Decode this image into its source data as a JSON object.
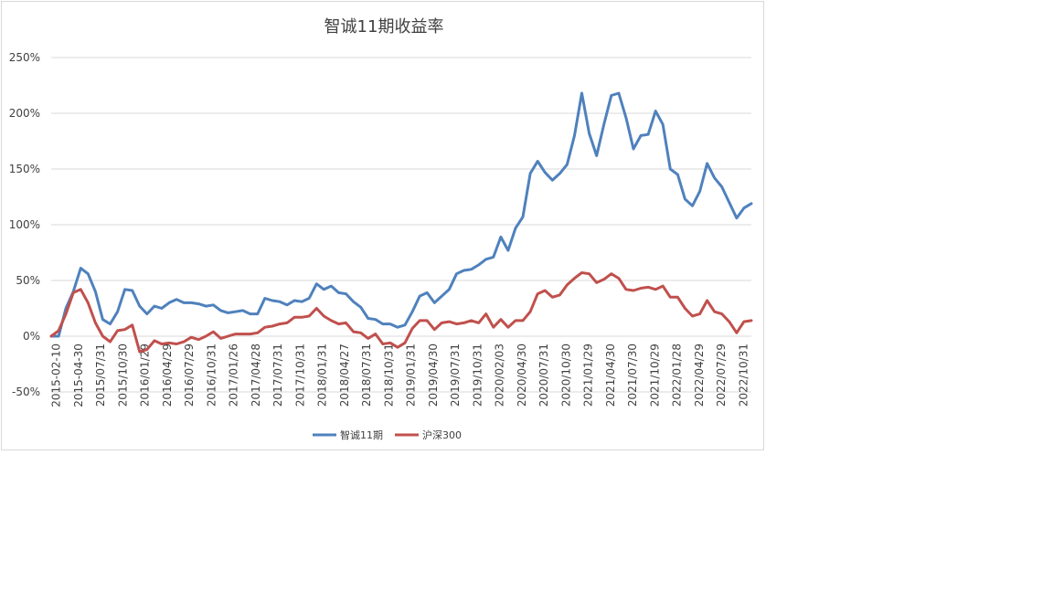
{
  "chart_data": {
    "type": "line",
    "title": "智诚11期收益率",
    "xlabel": "",
    "ylabel": "",
    "ylim": [
      -50,
      250
    ],
    "yticks": [
      -50,
      0,
      50,
      100,
      150,
      200,
      250
    ],
    "ytick_labels": [
      "-50%",
      "0%",
      "50%",
      "100%",
      "150%",
      "200%",
      "250%"
    ],
    "y_unit": "%",
    "grid": true,
    "legend_position": "bottom",
    "xtick_labels": [
      "2015-02-10",
      "2015-04-30",
      "2015/07/31",
      "2015/10/30",
      "2016/01/29",
      "2016/04/29",
      "2016/07/29",
      "2016/10/31",
      "2017/01/26",
      "2017/04/28",
      "2017/07/31",
      "2017/10/31",
      "2018/01/31",
      "2018/04/27",
      "2018/07/31",
      "2018/10/31",
      "2019/01/31",
      "2019/04/30",
      "2019/07/31",
      "2019/10/31",
      "2020/02/03",
      "2020/04/30",
      "2020/07/31",
      "2020/10/30",
      "2021/01/29",
      "2021/04/30",
      "2021/07/30",
      "2021/10/29",
      "2022/01/28",
      "2022/04/29",
      "2022/07/29",
      "2022/10/31"
    ],
    "series": [
      {
        "name": "智诚11期",
        "color": "#4f81bd",
        "values": [
          0,
          0,
          25,
          40,
          61,
          56,
          40,
          15,
          11,
          22,
          42,
          41,
          27,
          20,
          27,
          25,
          30,
          33,
          30,
          30,
          29,
          27,
          28,
          23,
          21,
          22,
          23,
          20,
          20,
          34,
          32,
          31,
          28,
          32,
          31,
          34,
          47,
          42,
          45,
          39,
          38,
          31,
          26,
          16,
          15,
          11,
          11,
          8,
          10,
          22,
          36,
          39,
          30,
          36,
          42,
          56,
          59,
          60,
          64,
          69,
          71,
          89,
          77,
          97,
          107,
          146,
          157,
          147,
          140,
          146,
          154,
          180,
          218,
          182,
          162,
          190,
          216,
          218,
          196,
          168,
          180,
          181,
          202,
          190,
          150,
          145,
          123,
          117,
          130,
          155,
          142,
          134,
          120,
          106,
          115,
          119
        ]
      },
      {
        "name": "沪深300",
        "color": "#c0504d",
        "values": [
          0,
          5,
          20,
          39,
          42,
          30,
          12,
          0,
          -5,
          5,
          6,
          10,
          -14,
          -12,
          -4,
          -7,
          -6,
          -7,
          -5,
          -1,
          -3,
          0,
          4,
          -2,
          0,
          2,
          2,
          2,
          3,
          8,
          9,
          11,
          12,
          17,
          17,
          18,
          25,
          18,
          14,
          11,
          12,
          4,
          3,
          -2,
          2,
          -7,
          -6,
          -10,
          -6,
          7,
          14,
          14,
          6,
          12,
          13,
          11,
          12,
          14,
          12,
          20,
          8,
          15,
          8,
          14,
          14,
          22,
          38,
          41,
          35,
          37,
          46,
          52,
          57,
          56,
          48,
          51,
          56,
          52,
          42,
          41,
          43,
          44,
          42,
          45,
          35,
          35,
          25,
          18,
          20,
          32,
          22,
          20,
          13,
          3,
          13,
          14
        ]
      }
    ]
  }
}
